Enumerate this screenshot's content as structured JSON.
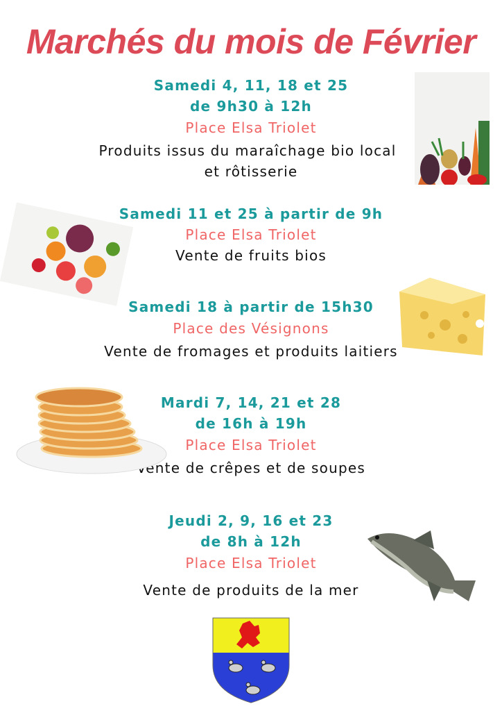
{
  "title": "Marchés du mois de Février",
  "markets": [
    {
      "when": [
        "Samedi 4, 11, 18 et 25",
        "de 9h30 à 12h"
      ],
      "place": "Place Elsa Triolet",
      "desc": [
        "Produits issus du maraîchage bio local",
        "et rôtisserie"
      ],
      "image": "vegetables"
    },
    {
      "when": [
        "Samedi 11 et 25 à partir de 9h"
      ],
      "place": "Place Elsa Triolet",
      "desc": [
        "Vente de fruits bios"
      ],
      "image": "fruits"
    },
    {
      "when": [
        "Samedi 18 à partir de 15h30"
      ],
      "place": "Place des Vésignons",
      "desc": [
        "Vente de fromages et produits laitiers"
      ],
      "image": "cheese"
    },
    {
      "when": [
        "Mardi 7, 14, 21 et 28",
        "de 16h à 19h"
      ],
      "place": "Place Elsa Triolet",
      "desc": [
        "Vente de crêpes et de soupes"
      ],
      "image": "pancakes"
    },
    {
      "when": [
        "Jeudi 2, 9, 16 et 23",
        "de 8h à 12h"
      ],
      "place": "Place Elsa Triolet",
      "desc": [
        "Vente de produits de la mer"
      ],
      "image": "fish"
    }
  ],
  "emblem": "coat-of-arms",
  "colors": {
    "title": "#dc4a58",
    "when": "#1b9a9c",
    "place": "#f06565",
    "text": "#111111"
  }
}
